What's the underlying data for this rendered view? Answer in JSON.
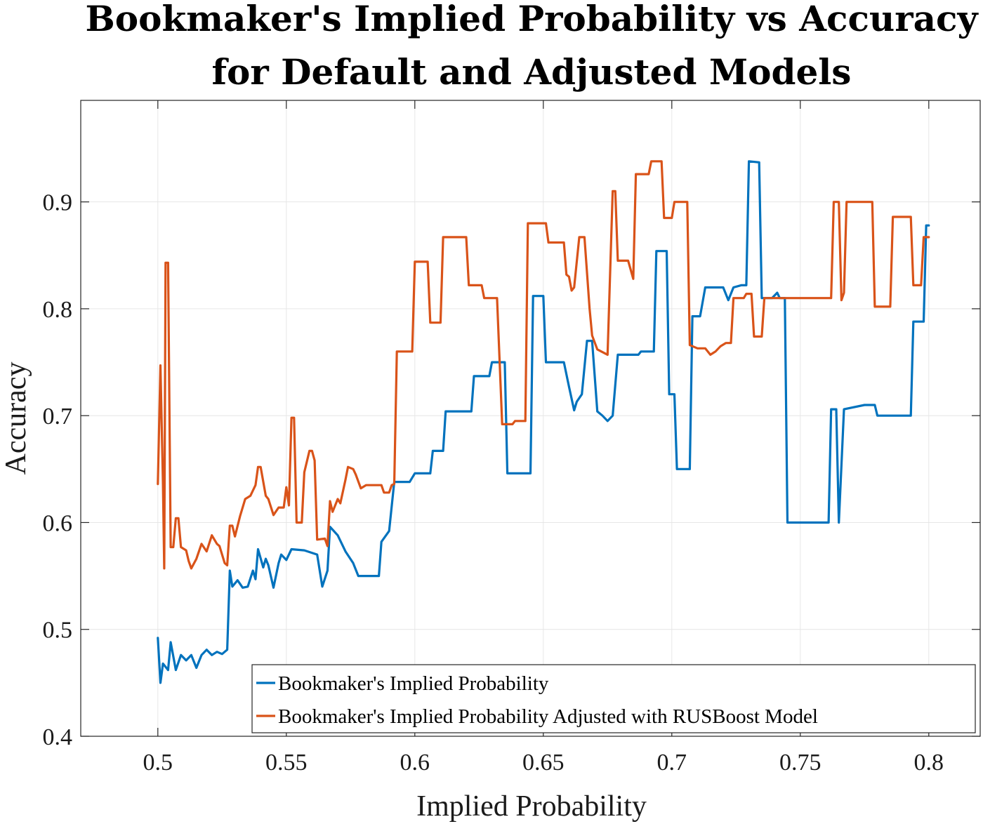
{
  "chart_data": {
    "type": "line",
    "title": [
      "Bookmaker's Implied Probability vs Accuracy",
      "for Default and Adjusted Models"
    ],
    "xlabel": "Implied Probability",
    "ylabel": "Accuracy",
    "xlim": [
      0.47,
      0.82
    ],
    "ylim": [
      0.4,
      0.995
    ],
    "xticks": [
      0.5,
      0.55,
      0.6,
      0.65,
      0.7,
      0.75,
      0.8
    ],
    "xtick_labels": [
      "0.5",
      "0.55",
      "0.6",
      "0.65",
      "0.7",
      "0.75",
      "0.8"
    ],
    "yticks": [
      0.4,
      0.5,
      0.6,
      0.7,
      0.8,
      0.9
    ],
    "ytick_labels": [
      "0.4",
      "0.5",
      "0.6",
      "0.7",
      "0.8",
      "0.9"
    ],
    "grid": true,
    "legend_position": "bottom-right",
    "series": [
      {
        "name": "Bookmaker's Implied Probability",
        "color": "#0072BD",
        "points": [
          [
            0.5,
            0.492
          ],
          [
            0.501,
            0.45
          ],
          [
            0.502,
            0.468
          ],
          [
            0.504,
            0.462
          ],
          [
            0.505,
            0.488
          ],
          [
            0.507,
            0.462
          ],
          [
            0.509,
            0.476
          ],
          [
            0.511,
            0.471
          ],
          [
            0.513,
            0.476
          ],
          [
            0.515,
            0.464
          ],
          [
            0.517,
            0.476
          ],
          [
            0.519,
            0.481
          ],
          [
            0.521,
            0.476
          ],
          [
            0.523,
            0.479
          ],
          [
            0.525,
            0.477
          ],
          [
            0.527,
            0.481
          ],
          [
            0.528,
            0.555
          ],
          [
            0.529,
            0.54
          ],
          [
            0.531,
            0.546
          ],
          [
            0.533,
            0.539
          ],
          [
            0.535,
            0.54
          ],
          [
            0.537,
            0.555
          ],
          [
            0.538,
            0.547
          ],
          [
            0.539,
            0.575
          ],
          [
            0.541,
            0.558
          ],
          [
            0.542,
            0.566
          ],
          [
            0.543,
            0.56
          ],
          [
            0.545,
            0.539
          ],
          [
            0.547,
            0.562
          ],
          [
            0.548,
            0.57
          ],
          [
            0.55,
            0.565
          ],
          [
            0.552,
            0.575
          ],
          [
            0.557,
            0.574
          ],
          [
            0.562,
            0.57
          ],
          [
            0.564,
            0.54
          ],
          [
            0.566,
            0.555
          ],
          [
            0.567,
            0.596
          ],
          [
            0.57,
            0.588
          ],
          [
            0.573,
            0.573
          ],
          [
            0.576,
            0.562
          ],
          [
            0.578,
            0.55
          ],
          [
            0.586,
            0.55
          ],
          [
            0.587,
            0.582
          ],
          [
            0.59,
            0.592
          ],
          [
            0.592,
            0.638
          ],
          [
            0.598,
            0.638
          ],
          [
            0.6,
            0.646
          ],
          [
            0.606,
            0.646
          ],
          [
            0.607,
            0.667
          ],
          [
            0.611,
            0.667
          ],
          [
            0.612,
            0.704
          ],
          [
            0.622,
            0.704
          ],
          [
            0.623,
            0.737
          ],
          [
            0.629,
            0.737
          ],
          [
            0.63,
            0.75
          ],
          [
            0.635,
            0.75
          ],
          [
            0.636,
            0.646
          ],
          [
            0.645,
            0.646
          ],
          [
            0.646,
            0.812
          ],
          [
            0.65,
            0.812
          ],
          [
            0.651,
            0.75
          ],
          [
            0.658,
            0.75
          ],
          [
            0.66,
            0.727
          ],
          [
            0.662,
            0.705
          ],
          [
            0.663,
            0.713
          ],
          [
            0.665,
            0.72
          ],
          [
            0.667,
            0.77
          ],
          [
            0.669,
            0.77
          ],
          [
            0.671,
            0.704
          ],
          [
            0.673,
            0.7
          ],
          [
            0.675,
            0.695
          ],
          [
            0.677,
            0.7
          ],
          [
            0.679,
            0.757
          ],
          [
            0.687,
            0.757
          ],
          [
            0.688,
            0.76
          ],
          [
            0.693,
            0.76
          ],
          [
            0.694,
            0.854
          ],
          [
            0.698,
            0.854
          ],
          [
            0.699,
            0.72
          ],
          [
            0.701,
            0.72
          ],
          [
            0.702,
            0.65
          ],
          [
            0.707,
            0.65
          ],
          [
            0.708,
            0.793
          ],
          [
            0.711,
            0.793
          ],
          [
            0.713,
            0.82
          ],
          [
            0.72,
            0.82
          ],
          [
            0.722,
            0.808
          ],
          [
            0.724,
            0.82
          ],
          [
            0.727,
            0.822
          ],
          [
            0.729,
            0.822
          ],
          [
            0.73,
            0.938
          ],
          [
            0.734,
            0.937
          ],
          [
            0.735,
            0.81
          ],
          [
            0.739,
            0.81
          ],
          [
            0.741,
            0.815
          ],
          [
            0.742,
            0.81
          ],
          [
            0.744,
            0.81
          ],
          [
            0.745,
            0.6
          ],
          [
            0.761,
            0.6
          ],
          [
            0.762,
            0.706
          ],
          [
            0.764,
            0.706
          ],
          [
            0.765,
            0.6
          ],
          [
            0.767,
            0.706
          ],
          [
            0.775,
            0.71
          ],
          [
            0.779,
            0.71
          ],
          [
            0.78,
            0.7
          ],
          [
            0.793,
            0.7
          ],
          [
            0.794,
            0.788
          ],
          [
            0.798,
            0.788
          ],
          [
            0.799,
            0.878
          ],
          [
            0.8,
            0.878
          ]
        ]
      },
      {
        "name": "Bookmaker's Implied Probability Adjusted with RUSBoost Model",
        "color": "#D95319",
        "points": [
          [
            0.5,
            0.636
          ],
          [
            0.501,
            0.747
          ],
          [
            0.502,
            0.636
          ],
          [
            0.5025,
            0.557
          ],
          [
            0.503,
            0.843
          ],
          [
            0.504,
            0.843
          ],
          [
            0.505,
            0.577
          ],
          [
            0.506,
            0.577
          ],
          [
            0.507,
            0.604
          ],
          [
            0.508,
            0.604
          ],
          [
            0.509,
            0.577
          ],
          [
            0.511,
            0.574
          ],
          [
            0.512,
            0.564
          ],
          [
            0.513,
            0.557
          ],
          [
            0.515,
            0.566
          ],
          [
            0.517,
            0.58
          ],
          [
            0.519,
            0.573
          ],
          [
            0.521,
            0.588
          ],
          [
            0.523,
            0.58
          ],
          [
            0.524,
            0.578
          ],
          [
            0.526,
            0.562
          ],
          [
            0.527,
            0.56
          ],
          [
            0.528,
            0.597
          ],
          [
            0.529,
            0.597
          ],
          [
            0.53,
            0.587
          ],
          [
            0.532,
            0.606
          ],
          [
            0.534,
            0.622
          ],
          [
            0.536,
            0.625
          ],
          [
            0.538,
            0.635
          ],
          [
            0.539,
            0.652
          ],
          [
            0.54,
            0.652
          ],
          [
            0.542,
            0.625
          ],
          [
            0.543,
            0.622
          ],
          [
            0.545,
            0.607
          ],
          [
            0.547,
            0.614
          ],
          [
            0.549,
            0.614
          ],
          [
            0.55,
            0.633
          ],
          [
            0.551,
            0.616
          ],
          [
            0.552,
            0.698
          ],
          [
            0.553,
            0.698
          ],
          [
            0.554,
            0.6
          ],
          [
            0.556,
            0.6
          ],
          [
            0.557,
            0.647
          ],
          [
            0.559,
            0.667
          ],
          [
            0.56,
            0.667
          ],
          [
            0.561,
            0.658
          ],
          [
            0.562,
            0.584
          ],
          [
            0.565,
            0.585
          ],
          [
            0.566,
            0.578
          ],
          [
            0.567,
            0.62
          ],
          [
            0.568,
            0.61
          ],
          [
            0.57,
            0.622
          ],
          [
            0.571,
            0.618
          ],
          [
            0.573,
            0.64
          ],
          [
            0.574,
            0.652
          ],
          [
            0.576,
            0.65
          ],
          [
            0.577,
            0.645
          ],
          [
            0.579,
            0.632
          ],
          [
            0.581,
            0.635
          ],
          [
            0.587,
            0.635
          ],
          [
            0.588,
            0.628
          ],
          [
            0.59,
            0.628
          ],
          [
            0.591,
            0.635
          ],
          [
            0.592,
            0.636
          ],
          [
            0.593,
            0.76
          ],
          [
            0.599,
            0.76
          ],
          [
            0.6,
            0.844
          ],
          [
            0.605,
            0.844
          ],
          [
            0.606,
            0.787
          ],
          [
            0.61,
            0.787
          ],
          [
            0.611,
            0.867
          ],
          [
            0.62,
            0.867
          ],
          [
            0.621,
            0.822
          ],
          [
            0.626,
            0.822
          ],
          [
            0.627,
            0.81
          ],
          [
            0.632,
            0.81
          ],
          [
            0.634,
            0.692
          ],
          [
            0.638,
            0.692
          ],
          [
            0.639,
            0.695
          ],
          [
            0.643,
            0.695
          ],
          [
            0.644,
            0.88
          ],
          [
            0.651,
            0.88
          ],
          [
            0.652,
            0.862
          ],
          [
            0.658,
            0.862
          ],
          [
            0.659,
            0.832
          ],
          [
            0.66,
            0.83
          ],
          [
            0.661,
            0.817
          ],
          [
            0.662,
            0.82
          ],
          [
            0.664,
            0.867
          ],
          [
            0.666,
            0.867
          ],
          [
            0.668,
            0.8
          ],
          [
            0.669,
            0.775
          ],
          [
            0.671,
            0.762
          ],
          [
            0.675,
            0.757
          ],
          [
            0.677,
            0.91
          ],
          [
            0.678,
            0.91
          ],
          [
            0.679,
            0.845
          ],
          [
            0.683,
            0.845
          ],
          [
            0.685,
            0.828
          ],
          [
            0.686,
            0.926
          ],
          [
            0.691,
            0.926
          ],
          [
            0.692,
            0.938
          ],
          [
            0.696,
            0.938
          ],
          [
            0.697,
            0.885
          ],
          [
            0.7,
            0.885
          ],
          [
            0.701,
            0.9
          ],
          [
            0.706,
            0.9
          ],
          [
            0.707,
            0.766
          ],
          [
            0.71,
            0.763
          ],
          [
            0.713,
            0.763
          ],
          [
            0.715,
            0.757
          ],
          [
            0.717,
            0.76
          ],
          [
            0.719,
            0.765
          ],
          [
            0.721,
            0.768
          ],
          [
            0.723,
            0.768
          ],
          [
            0.724,
            0.81
          ],
          [
            0.728,
            0.81
          ],
          [
            0.729,
            0.814
          ],
          [
            0.731,
            0.814
          ],
          [
            0.732,
            0.774
          ],
          [
            0.735,
            0.774
          ],
          [
            0.736,
            0.81
          ],
          [
            0.762,
            0.81
          ],
          [
            0.763,
            0.9
          ],
          [
            0.765,
            0.9
          ],
          [
            0.766,
            0.808
          ],
          [
            0.767,
            0.815
          ],
          [
            0.768,
            0.9
          ],
          [
            0.778,
            0.9
          ],
          [
            0.779,
            0.802
          ],
          [
            0.785,
            0.802
          ],
          [
            0.786,
            0.886
          ],
          [
            0.793,
            0.886
          ],
          [
            0.794,
            0.822
          ],
          [
            0.797,
            0.822
          ],
          [
            0.798,
            0.867
          ],
          [
            0.8,
            0.867
          ]
        ]
      }
    ]
  }
}
